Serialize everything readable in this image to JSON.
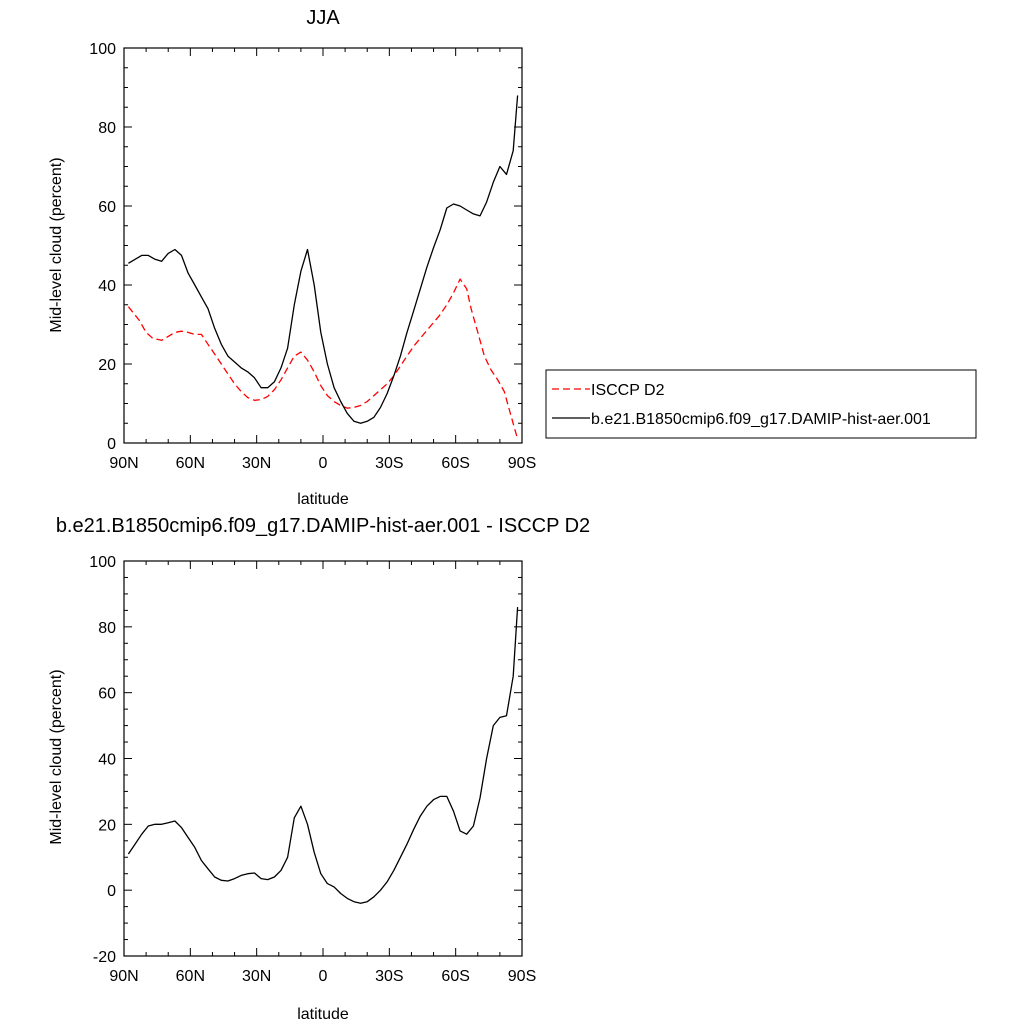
{
  "chart_data": [
    {
      "type": "line",
      "title": "JJA",
      "xlabel": "latitude",
      "ylabel": "Mid-level cloud (percent)",
      "xlim": [
        90,
        -90
      ],
      "ylim": [
        0,
        100
      ],
      "x_ticks": [
        90,
        60,
        30,
        0,
        -30,
        -60,
        -90
      ],
      "x_tick_labels": [
        "90N",
        "60N",
        "30N",
        "0",
        "30S",
        "60S",
        "90S"
      ],
      "y_ticks": [
        0,
        20,
        40,
        60,
        80,
        100
      ],
      "y_tick_labels": [
        "0",
        "20",
        "40",
        "60",
        "80",
        "100"
      ],
      "legend_position": "right",
      "series": [
        {
          "name": "ISCCP D2",
          "color": "#ff0000",
          "style": "dashed",
          "x": [
            88,
            83,
            80,
            77,
            73,
            70,
            67,
            64,
            61,
            58,
            55,
            52,
            49,
            46,
            43,
            40,
            37,
            34,
            31,
            28,
            25,
            22,
            19,
            16,
            13,
            10,
            7,
            4,
            1,
            -2,
            -5,
            -8,
            -11,
            -14,
            -17,
            -20,
            -23,
            -26,
            -29,
            -32,
            -35,
            -38,
            -41,
            -44,
            -47,
            -50,
            -53,
            -56,
            -59,
            -62,
            -65,
            -67,
            -70,
            -73,
            -76,
            -79,
            -82,
            -85,
            -88
          ],
          "y": [
            34.5,
            31,
            28,
            26.5,
            26,
            27,
            28,
            28.3,
            28,
            27.5,
            27.5,
            25,
            22.5,
            20,
            17.5,
            15,
            13,
            11.5,
            10.8,
            11,
            11.8,
            13.5,
            16,
            19,
            22,
            23,
            21,
            18,
            14.5,
            12,
            10.5,
            9.5,
            8.8,
            9,
            9.5,
            10.5,
            12,
            13.5,
            15,
            17,
            19.5,
            22,
            24.5,
            26.5,
            28.5,
            30.5,
            32.5,
            35,
            38,
            41.5,
            39,
            34,
            28,
            22,
            18.5,
            16,
            13,
            7,
            1
          ]
        },
        {
          "name": "b.e21.B1850cmip6.f09_g17.DAMIP-hist-aer.001",
          "color": "#000000",
          "style": "solid",
          "x": [
            88,
            85,
            82,
            79,
            76,
            73,
            70,
            67,
            64,
            61,
            58,
            55,
            52,
            49,
            46,
            43,
            40,
            37,
            34,
            31,
            28,
            25,
            22,
            19,
            16,
            13,
            10,
            7,
            4,
            1,
            -2,
            -5,
            -8,
            -11,
            -14,
            -17,
            -20,
            -23,
            -26,
            -29,
            -32,
            -35,
            -38,
            -41,
            -44,
            -47,
            -50,
            -53,
            -56,
            -59,
            -62,
            -65,
            -68,
            -71,
            -74,
            -77,
            -80,
            -83,
            -86,
            -88
          ],
          "y": [
            45.5,
            46.5,
            47.5,
            47.5,
            46.5,
            46,
            48,
            49,
            47.5,
            43,
            40,
            37,
            34,
            29,
            25,
            22,
            20.5,
            19,
            18,
            16.5,
            14,
            14,
            15.5,
            19,
            24,
            35,
            43.5,
            49,
            40,
            28,
            20,
            14,
            10.5,
            7.5,
            5.5,
            5,
            5.5,
            6.5,
            9,
            12.5,
            17,
            22,
            28,
            33.5,
            39,
            44.5,
            49.5,
            54,
            59.5,
            60.5,
            60,
            59,
            58,
            57.5,
            61,
            66,
            70,
            68,
            74,
            88
          ]
        }
      ]
    },
    {
      "type": "line",
      "title": "b.e21.B1850cmip6.f09_g17.DAMIP-hist-aer.001 - ISCCP D2",
      "xlabel": "latitude",
      "ylabel": "Mid-level cloud (percent)",
      "xlim": [
        90,
        -90
      ],
      "ylim": [
        -20,
        100
      ],
      "x_ticks": [
        90,
        60,
        30,
        0,
        -30,
        -60,
        -90
      ],
      "x_tick_labels": [
        "90N",
        "60N",
        "30N",
        "0",
        "30S",
        "60S",
        "90S"
      ],
      "y_ticks": [
        -20,
        0,
        20,
        40,
        60,
        80,
        100
      ],
      "y_tick_labels": [
        "-20",
        "0",
        "20",
        "40",
        "60",
        "80",
        "100"
      ],
      "series": [
        {
          "color": "#000000",
          "style": "solid",
          "x": [
            88,
            85,
            82,
            79,
            76,
            73,
            70,
            67,
            64,
            61,
            58,
            55,
            52,
            49,
            46,
            43,
            40,
            37,
            34,
            31,
            28,
            25,
            22,
            19,
            16,
            13,
            10,
            7,
            4,
            1,
            -2,
            -5,
            -8,
            -11,
            -14,
            -17,
            -20,
            -23,
            -26,
            -29,
            -32,
            -35,
            -38,
            -41,
            -44,
            -47,
            -50,
            -53,
            -56,
            -59,
            -62,
            -65,
            -68,
            -71,
            -74,
            -77,
            -80,
            -83,
            -86,
            -88
          ],
          "y": [
            11,
            14,
            17,
            19.5,
            20,
            20,
            20.5,
            21,
            19,
            16,
            13,
            9,
            6.5,
            4,
            3,
            2.8,
            3.5,
            4.5,
            5,
            5.2,
            3.5,
            3.2,
            4,
            6,
            10,
            22,
            25.5,
            20,
            11.5,
            5,
            2,
            1,
            -1,
            -2.5,
            -3.5,
            -4,
            -3.5,
            -2,
            0,
            2.5,
            6,
            10,
            14,
            18.5,
            22.5,
            25.5,
            27.5,
            28.5,
            28.5,
            24,
            18,
            17,
            19.5,
            28,
            40,
            50,
            52.5,
            53,
            65,
            86
          ]
        }
      ]
    }
  ]
}
